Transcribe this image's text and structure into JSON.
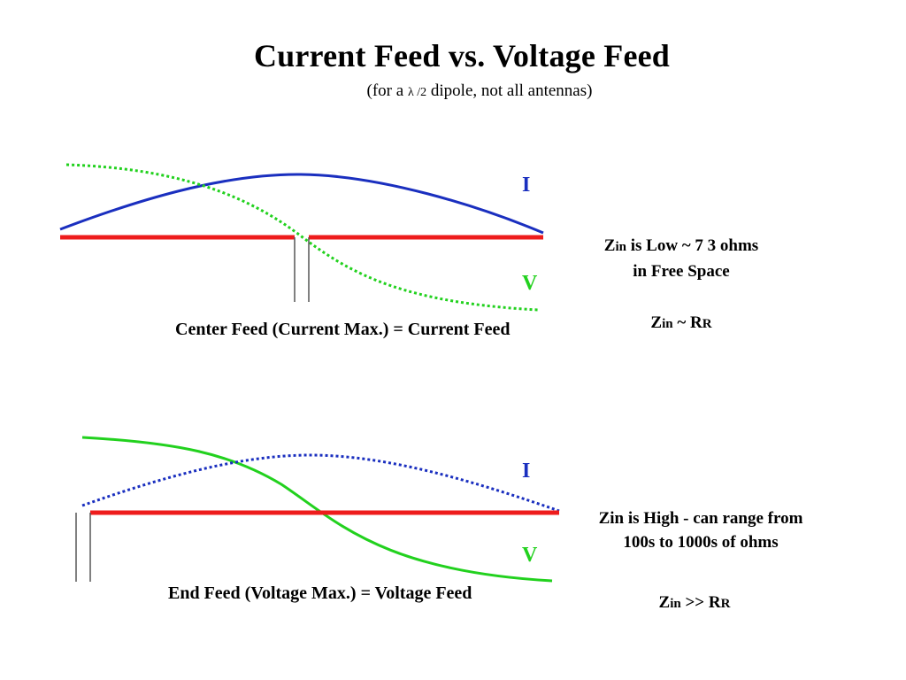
{
  "title": "Current Feed vs. Voltage Feed",
  "subtitle": {
    "prefix": "(for a ",
    "lambda": "λ /2",
    "suffix": " dipole, not all antennas)"
  },
  "center_feed": {
    "caption": "Center Feed (Current Max.) = Current Feed",
    "label_i": "I",
    "label_v": "V",
    "note_line1_z": "Z",
    "note_line1_in": "in",
    "note_line1_rest": " is Low ~ 7 3 ohms",
    "note_line2": "in Free Space",
    "relation_z": "Z",
    "relation_in": "in",
    "relation_op": " ~ R",
    "relation_r": "R"
  },
  "end_feed": {
    "caption": "End Feed (Voltage Max.) = Voltage Feed",
    "label_i": "I",
    "label_v": "V",
    "note_line1": "Zin is High - can range from",
    "note_line2": "100s to 1000s of ohms",
    "relation_z": "Z",
    "relation_in": "in",
    "relation_op": " >> R",
    "relation_r": "R"
  },
  "colors": {
    "antenna": "#ee1c1c",
    "current": "#1a2fbf",
    "voltage": "#22d11e",
    "feedline": "#555555"
  }
}
